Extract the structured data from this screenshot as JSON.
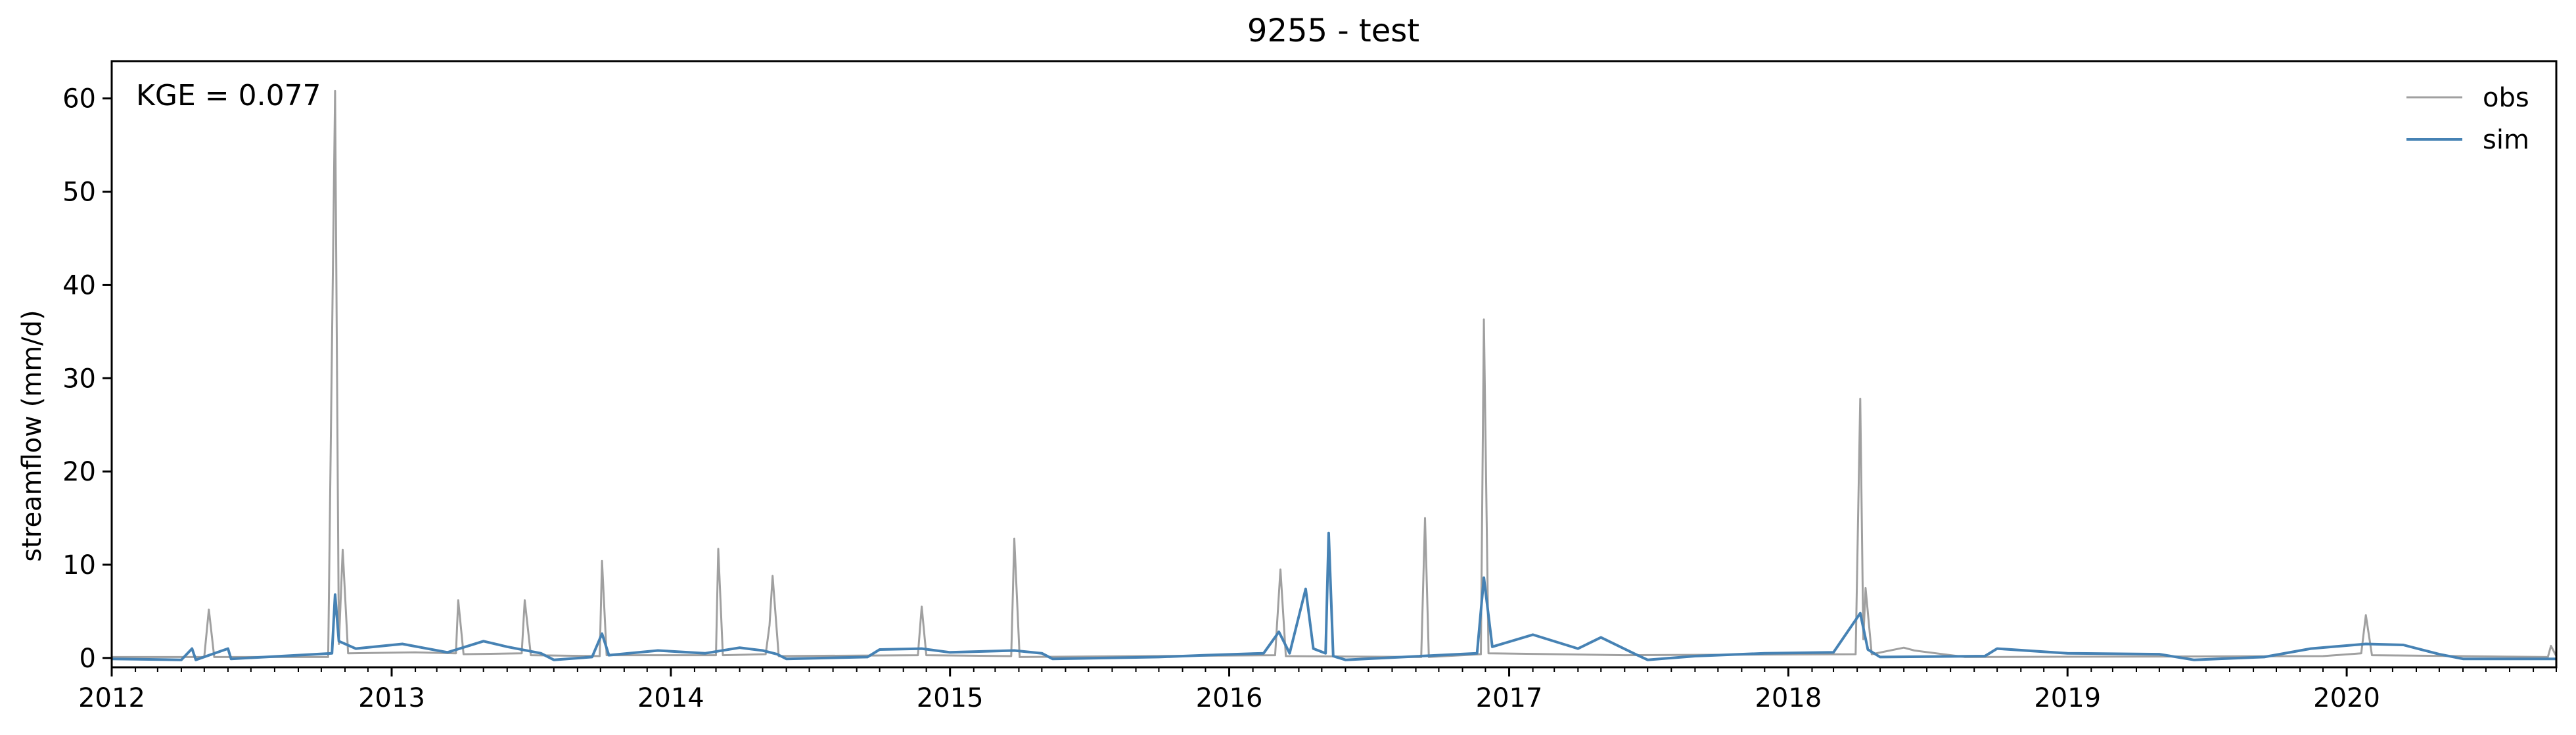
{
  "chart_data": {
    "type": "line",
    "title": "9255 - test",
    "xlabel": "",
    "ylabel": "streamflow (mm/d)",
    "xlim": [
      "2012-01-01",
      "2020-10-01"
    ],
    "ylim": [
      -1,
      64
    ],
    "x_ticks": [
      "2012",
      "2013",
      "2014",
      "2015",
      "2016",
      "2017",
      "2018",
      "2019",
      "2020"
    ],
    "y_ticks": [
      0,
      10,
      20,
      30,
      40,
      50,
      60
    ],
    "grid": false,
    "legend": {
      "placement": "top-right",
      "entries": [
        "obs",
        "sim"
      ]
    },
    "annotation": "KGE = 0.077",
    "series": [
      {
        "name": "obs",
        "color": "#a0a0a0",
        "points": [
          [
            "2012-01-01",
            0.1
          ],
          [
            "2012-05-01",
            0.1
          ],
          [
            "2012-05-07",
            5.2
          ],
          [
            "2012-05-14",
            0.1
          ],
          [
            "2012-10-10",
            0.1
          ],
          [
            "2012-10-19",
            60.8
          ],
          [
            "2012-10-24",
            1.5
          ],
          [
            "2012-10-29",
            11.6
          ],
          [
            "2012-11-05",
            0.5
          ],
          [
            "2013-02-01",
            0.6
          ],
          [
            "2013-03-26",
            0.5
          ],
          [
            "2013-03-29",
            6.2
          ],
          [
            "2013-04-05",
            0.4
          ],
          [
            "2013-06-20",
            0.5
          ],
          [
            "2013-06-24",
            6.2
          ],
          [
            "2013-07-02",
            0.3
          ],
          [
            "2013-09-30",
            0.2
          ],
          [
            "2013-10-03",
            10.4
          ],
          [
            "2013-10-09",
            0.3
          ],
          [
            "2014-03-01",
            0.3
          ],
          [
            "2014-03-04",
            11.7
          ],
          [
            "2014-03-10",
            0.3
          ],
          [
            "2014-05-05",
            0.4
          ],
          [
            "2014-05-10",
            3.5
          ],
          [
            "2014-05-14",
            8.8
          ],
          [
            "2014-05-22",
            0.2
          ],
          [
            "2014-11-20",
            0.3
          ],
          [
            "2014-11-25",
            5.5
          ],
          [
            "2014-12-01",
            0.3
          ],
          [
            "2015-03-22",
            0.2
          ],
          [
            "2015-03-26",
            12.8
          ],
          [
            "2015-04-02",
            0.1
          ],
          [
            "2016-03-01",
            0.3
          ],
          [
            "2016-03-08",
            9.5
          ],
          [
            "2016-03-15",
            0.2
          ],
          [
            "2016-09-08",
            0.1
          ],
          [
            "2016-09-13",
            15.0
          ],
          [
            "2016-09-18",
            0.1
          ],
          [
            "2016-11-25",
            0.4
          ],
          [
            "2016-11-29",
            36.3
          ],
          [
            "2016-12-05",
            0.5
          ],
          [
            "2017-06-01",
            0.3
          ],
          [
            "2018-03-30",
            0.4
          ],
          [
            "2018-04-05",
            27.8
          ],
          [
            "2018-04-09",
            2.0
          ],
          [
            "2018-04-12",
            7.5
          ],
          [
            "2018-04-20",
            0.4
          ],
          [
            "2018-06-01",
            1.1
          ],
          [
            "2018-06-15",
            0.8
          ],
          [
            "2018-08-20",
            0.1
          ],
          [
            "2019-12-01",
            0.2
          ],
          [
            "2020-01-20",
            0.5
          ],
          [
            "2020-01-26",
            4.6
          ],
          [
            "2020-02-03",
            0.3
          ],
          [
            "2020-09-20",
            0.1
          ],
          [
            "2020-09-24",
            1.3
          ],
          [
            "2020-10-01",
            0.2
          ]
        ]
      },
      {
        "name": "sim",
        "color": "#4682b4",
        "points": [
          [
            "2012-01-01",
            -0.1
          ],
          [
            "2012-04-01",
            -0.2
          ],
          [
            "2012-04-15",
            1.0
          ],
          [
            "2012-04-20",
            -0.2
          ],
          [
            "2012-06-01",
            1.0
          ],
          [
            "2012-06-05",
            -0.1
          ],
          [
            "2012-10-15",
            0.5
          ],
          [
            "2012-10-19",
            6.8
          ],
          [
            "2012-10-24",
            1.8
          ],
          [
            "2012-11-15",
            1.0
          ],
          [
            "2013-01-15",
            1.5
          ],
          [
            "2013-03-15",
            0.6
          ],
          [
            "2013-05-01",
            1.8
          ],
          [
            "2013-06-01",
            1.2
          ],
          [
            "2013-07-15",
            0.5
          ],
          [
            "2013-08-01",
            -0.2
          ],
          [
            "2013-09-20",
            0.1
          ],
          [
            "2013-10-03",
            2.6
          ],
          [
            "2013-10-12",
            0.3
          ],
          [
            "2013-12-15",
            0.8
          ],
          [
            "2014-02-15",
            0.5
          ],
          [
            "2014-04-01",
            1.1
          ],
          [
            "2014-05-01",
            0.8
          ],
          [
            "2014-05-20",
            0.4
          ],
          [
            "2014-06-01",
            -0.1
          ],
          [
            "2014-09-15",
            0.1
          ],
          [
            "2014-10-01",
            0.9
          ],
          [
            "2014-11-25",
            1.0
          ],
          [
            "2015-01-01",
            0.6
          ],
          [
            "2015-03-26",
            0.8
          ],
          [
            "2015-05-01",
            0.5
          ],
          [
            "2015-05-15",
            -0.1
          ],
          [
            "2015-10-01",
            0.1
          ],
          [
            "2015-12-01",
            0.3
          ],
          [
            "2016-02-15",
            0.5
          ],
          [
            "2016-03-06",
            2.8
          ],
          [
            "2016-03-20",
            0.5
          ],
          [
            "2016-04-10",
            7.4
          ],
          [
            "2016-04-20",
            1.0
          ],
          [
            "2016-05-06",
            0.5
          ],
          [
            "2016-05-10",
            13.4
          ],
          [
            "2016-05-16",
            0.2
          ],
          [
            "2016-06-01",
            -0.2
          ],
          [
            "2016-11-20",
            0.5
          ],
          [
            "2016-11-29",
            8.6
          ],
          [
            "2016-12-10",
            1.2
          ],
          [
            "2017-02-01",
            2.5
          ],
          [
            "2017-04-01",
            1.0
          ],
          [
            "2017-05-01",
            2.2
          ],
          [
            "2017-06-15",
            0.4
          ],
          [
            "2017-07-01",
            -0.2
          ],
          [
            "2017-09-01",
            0.2
          ],
          [
            "2017-12-01",
            0.5
          ],
          [
            "2018-03-01",
            0.6
          ],
          [
            "2018-04-05",
            4.8
          ],
          [
            "2018-04-15",
            0.9
          ],
          [
            "2018-05-01",
            0.1
          ],
          [
            "2018-09-15",
            0.2
          ],
          [
            "2018-10-01",
            1.0
          ],
          [
            "2019-01-01",
            0.5
          ],
          [
            "2019-05-01",
            0.4
          ],
          [
            "2019-06-15",
            -0.2
          ],
          [
            "2019-09-15",
            0.1
          ],
          [
            "2019-11-15",
            1.0
          ],
          [
            "2020-01-26",
            1.5
          ],
          [
            "2020-03-15",
            1.4
          ],
          [
            "2020-05-01",
            0.4
          ],
          [
            "2020-06-01",
            -0.1
          ],
          [
            "2020-10-01",
            -0.1
          ]
        ]
      }
    ]
  }
}
